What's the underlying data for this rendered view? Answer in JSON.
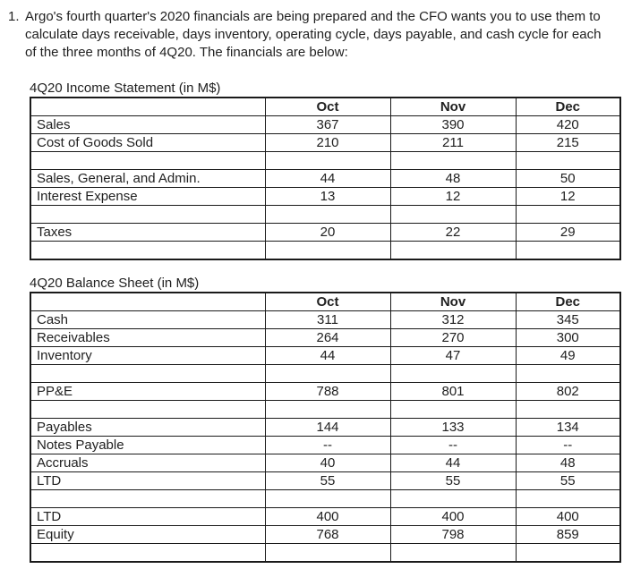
{
  "problem": {
    "number": "1.",
    "text": "Argo's fourth quarter's 2020 financials are being prepared and the CFO wants you to use them to calculate days receivable, days inventory, operating cycle, days payable, and cash cycle for each of the three months of 4Q20. The financials are below:"
  },
  "income_statement": {
    "title": "4Q20 Income Statement (in M$)",
    "columns": [
      "",
      "Oct",
      "Nov",
      "Dec"
    ],
    "rows": [
      {
        "label": "Sales",
        "values": [
          "367",
          "390",
          "420"
        ]
      },
      {
        "label": "Cost of Goods Sold",
        "values": [
          "210",
          "211",
          "215"
        ]
      },
      {
        "label": "",
        "values": [
          "",
          "",
          ""
        ]
      },
      {
        "label": "Sales, General, and Admin.",
        "values": [
          "44",
          "48",
          "50"
        ]
      },
      {
        "label": "Interest Expense",
        "values": [
          "13",
          "12",
          "12"
        ]
      },
      {
        "label": "",
        "values": [
          "",
          "",
          ""
        ]
      },
      {
        "label": "Taxes",
        "values": [
          "20",
          "22",
          "29"
        ]
      },
      {
        "label": "",
        "values": [
          "",
          "",
          ""
        ]
      }
    ]
  },
  "balance_sheet": {
    "title": "4Q20 Balance Sheet (in M$)",
    "columns": [
      "",
      "Oct",
      "Nov",
      "Dec"
    ],
    "rows": [
      {
        "label": "Cash",
        "values": [
          "311",
          "312",
          "345"
        ]
      },
      {
        "label": "Receivables",
        "values": [
          "264",
          "270",
          "300"
        ]
      },
      {
        "label": "Inventory",
        "values": [
          "44",
          "47",
          "49"
        ]
      },
      {
        "label": "",
        "values": [
          "",
          "",
          ""
        ]
      },
      {
        "label": "PP&E",
        "values": [
          "788",
          "801",
          "802"
        ]
      },
      {
        "label": "",
        "values": [
          "",
          "",
          ""
        ]
      },
      {
        "label": "Payables",
        "values": [
          "144",
          "133",
          "134"
        ]
      },
      {
        "label": "Notes Payable",
        "values": [
          "--",
          "--",
          "--"
        ]
      },
      {
        "label": "Accruals",
        "values": [
          "40",
          "44",
          "48"
        ]
      },
      {
        "label": "LTD",
        "values": [
          "55",
          "55",
          "55"
        ]
      },
      {
        "label": "",
        "values": [
          "",
          "",
          ""
        ]
      },
      {
        "label": "LTD",
        "values": [
          "400",
          "400",
          "400"
        ]
      },
      {
        "label": "Equity",
        "values": [
          "768",
          "798",
          "859"
        ]
      },
      {
        "label": "",
        "values": [
          "",
          "",
          ""
        ]
      }
    ]
  }
}
